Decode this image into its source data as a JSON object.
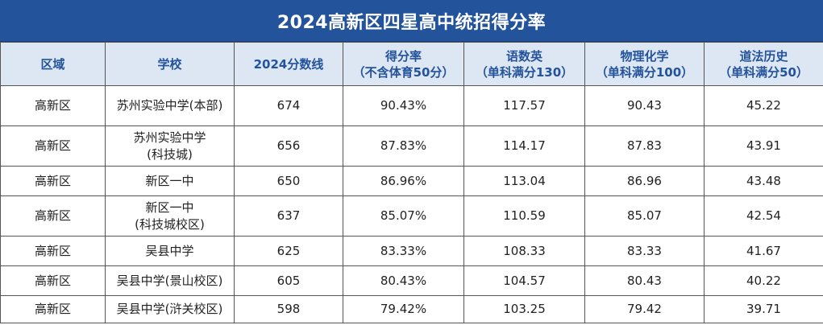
{
  "title": "2024高新区四星高中统招得分率",
  "headers": [
    {
      "line1": "区域",
      "line2": ""
    },
    {
      "line1": "学校",
      "line2": ""
    },
    {
      "line1": "2024分数线",
      "line2": ""
    },
    {
      "line1": "得分率",
      "line2": "（不含体育50分）"
    },
    {
      "line1": "语数英",
      "line2": "（单科满分130）"
    },
    {
      "line1": "物理化学",
      "line2": "（单科满分100）"
    },
    {
      "line1": "道法历史",
      "line2": "（单科满分50）"
    }
  ],
  "rows": [
    {
      "region": "高新区",
      "school1": "苏州实验中学(本部)",
      "school2": "",
      "cutoff": "674",
      "rate": "90.43%",
      "cme": "117.57",
      "pc": "90.43",
      "dh": "45.22"
    },
    {
      "region": "高新区",
      "school1": "苏州实验中学",
      "school2": "(科技城)",
      "cutoff": "656",
      "rate": "87.83%",
      "cme": "114.17",
      "pc": "87.83",
      "dh": "43.91"
    },
    {
      "region": "高新区",
      "school1": "新区一中",
      "school2": "",
      "cutoff": "650",
      "rate": "86.96%",
      "cme": "113.04",
      "pc": "86.96",
      "dh": "43.48"
    },
    {
      "region": "高新区",
      "school1": "新区一中",
      "school2": "(科技城校区)",
      "cutoff": "637",
      "rate": "85.07%",
      "cme": "110.59",
      "pc": "85.07",
      "dh": "42.54"
    },
    {
      "region": "高新区",
      "school1": "吴县中学",
      "school2": "",
      "cutoff": "625",
      "rate": "83.33%",
      "cme": "108.33",
      "pc": "83.33",
      "dh": "41.67"
    },
    {
      "region": "高新区",
      "school1": "吴县中学(景山校区)",
      "school2": "",
      "cutoff": "605",
      "rate": "80.43%",
      "cme": "104.57",
      "pc": "80.43",
      "dh": "40.22"
    },
    {
      "region": "高新区",
      "school1": "吴县中学(浒关校区)",
      "school2": "",
      "cutoff": "598",
      "rate": "79.42%",
      "cme": "103.25",
      "pc": "79.42",
      "dh": "39.71"
    }
  ]
}
